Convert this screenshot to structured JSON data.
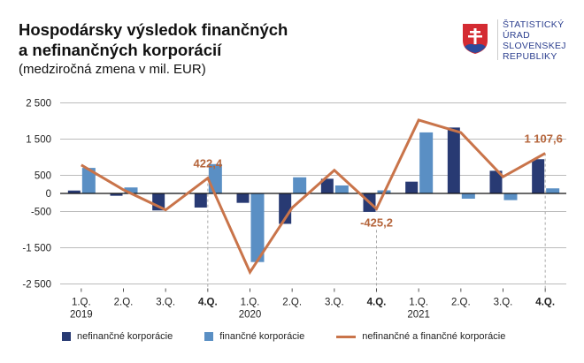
{
  "title_line1": "Hospodársky výsledok finančných",
  "title_line2": "a nefinančných korporácií",
  "subtitle": "(medziročná zmena v mil. EUR)",
  "logo": {
    "lines": [
      "ŠTATISTICKÝ",
      "ÚRAD",
      "SLOVENSKEJ",
      "REPUBLIKY"
    ]
  },
  "colors": {
    "nonfinancial": "#283a73",
    "financial": "#5a8fc4",
    "total": "#c9744a",
    "label": "#b5653b"
  },
  "chart_data": {
    "type": "bar+line",
    "categories": [
      "1.Q.",
      "2.Q.",
      "3.Q.",
      "4.Q.",
      "1.Q.",
      "2.Q.",
      "3.Q.",
      "4.Q.",
      "1.Q.",
      "2.Q.",
      "3.Q.",
      "4.Q."
    ],
    "bold_categories": [
      3,
      7,
      11
    ],
    "years": [
      {
        "index": 0,
        "label": "2019"
      },
      {
        "index": 4,
        "label": "2020"
      },
      {
        "index": 8,
        "label": "2021"
      }
    ],
    "ylim": [
      -2500,
      2500
    ],
    "yticks": [
      2500,
      1500,
      500,
      0,
      -500,
      -1500,
      -2500
    ],
    "ytick_labels": [
      "2 500",
      "1 500",
      "500",
      "0",
      "-500",
      "-1 500",
      "-2 500"
    ],
    "grid": true,
    "legend_position": "bottom",
    "series": [
      {
        "name": "nefinančné korporácie",
        "type": "bar",
        "values": [
          80,
          -65,
          -470,
          -390,
          -260,
          -840,
          405,
          -510,
          325,
          1820,
          625,
          945
        ]
      },
      {
        "name": "finančné korporácie",
        "type": "bar",
        "values": [
          705,
          165,
          15,
          810,
          -1895,
          445,
          220,
          85,
          1685,
          -145,
          -185,
          140
        ]
      },
      {
        "name": "nefinančné a finančné korporácie",
        "type": "line",
        "values": [
          785,
          100,
          -455,
          422.4,
          -2175,
          -395,
          640,
          -425.2,
          2025,
          1680,
          460,
          1107.6
        ]
      }
    ],
    "annotations": [
      {
        "index": 3,
        "text": "422,4",
        "position": "above"
      },
      {
        "index": 7,
        "text": "-425,2",
        "position": "below"
      },
      {
        "index": 11,
        "text": "1 107,6",
        "position": "above"
      }
    ]
  }
}
